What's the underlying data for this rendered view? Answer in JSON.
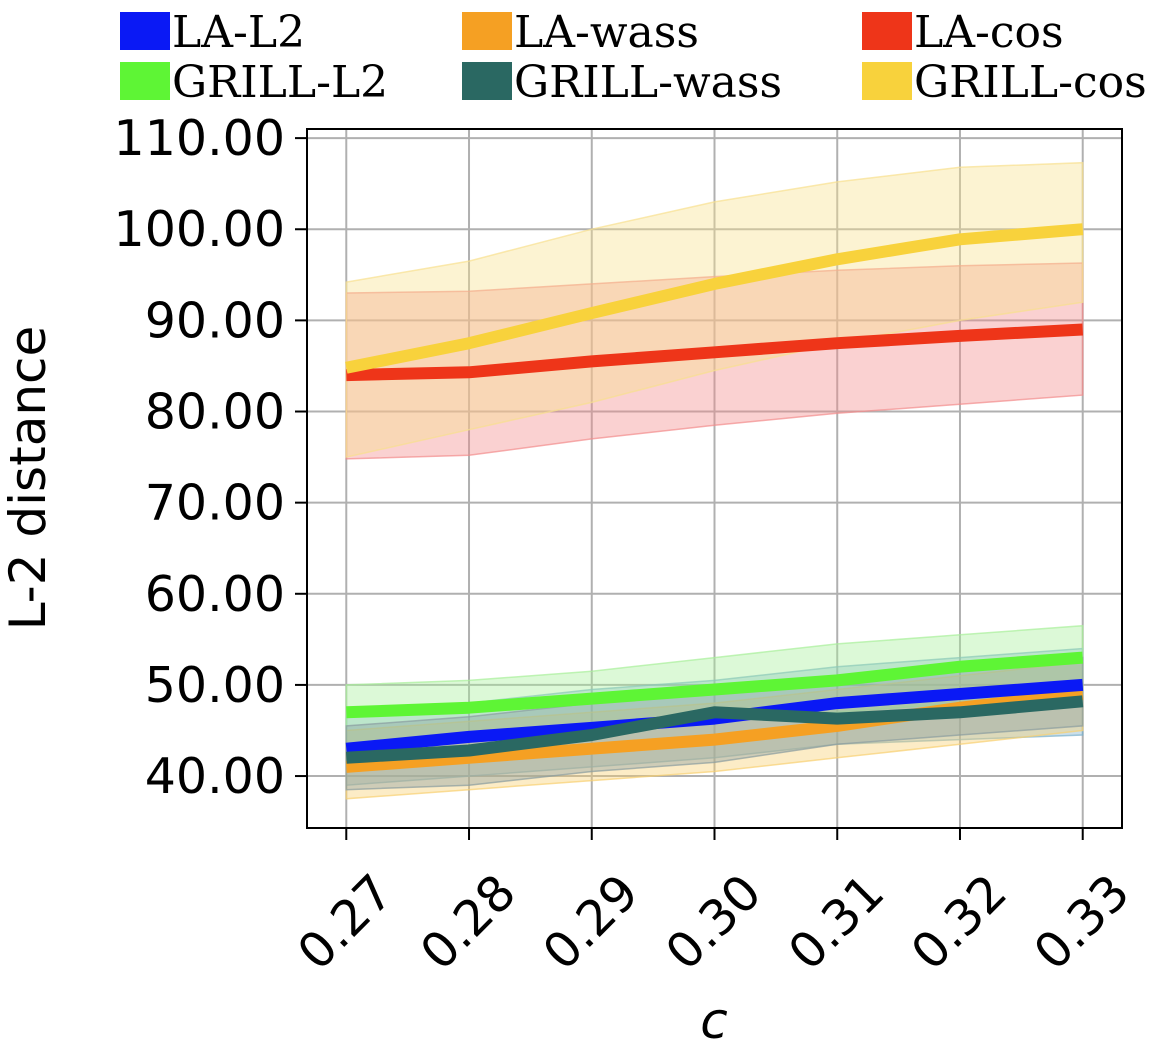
{
  "chart_data": {
    "type": "line",
    "xlabel": "c",
    "ylabel": "L-2 distance",
    "x": [
      0.27,
      0.28,
      0.29,
      0.3,
      0.31,
      0.32,
      0.33
    ],
    "x_tick_labels": [
      "0.27",
      "0.28",
      "0.29",
      "0.30",
      "0.31",
      "0.32",
      "0.33"
    ],
    "y_ticks": [
      40,
      50,
      60,
      70,
      80,
      90,
      100,
      110
    ],
    "y_tick_labels": [
      "40.00",
      "50.00",
      "60.00",
      "70.00",
      "80.00",
      "90.00",
      "100.00",
      "110.00"
    ],
    "xlim": [
      0.2668,
      0.3332
    ],
    "ylim": [
      34.3,
      111.0
    ],
    "grid": true,
    "legend_position": "top",
    "series": [
      {
        "name": "LA-L2",
        "color": "#0a19f5",
        "band_color": "#7ab0cc",
        "values": [
          43.0,
          44.3,
          45.3,
          46.3,
          48.0,
          49.0,
          50.0
        ],
        "lower": [
          39.0,
          40.0,
          41.0,
          42.0,
          43.5,
          44.0,
          44.5
        ],
        "upper": [
          46.5,
          48.0,
          49.5,
          50.5,
          52.0,
          53.0,
          54.0
        ]
      },
      {
        "name": "LA-wass",
        "color": "#f5a023",
        "band_color": "#f8d070",
        "values": [
          41.0,
          42.0,
          43.0,
          44.0,
          45.5,
          47.5,
          49.0
        ],
        "lower": [
          37.5,
          38.5,
          39.5,
          40.5,
          42.0,
          43.5,
          45.0
        ],
        "upper": [
          45.0,
          46.0,
          47.0,
          48.0,
          49.5,
          51.0,
          52.5
        ]
      },
      {
        "name": "LA-cos",
        "color": "#ee3519",
        "band_color": "#f28c8c",
        "values": [
          84.0,
          84.3,
          85.5,
          86.5,
          87.5,
          88.3,
          89.0
        ],
        "lower": [
          74.8,
          75.2,
          77.0,
          78.5,
          79.8,
          80.8,
          81.8
        ],
        "upper": [
          93.0,
          93.2,
          94.0,
          94.8,
          95.5,
          96.0,
          96.3
        ]
      },
      {
        "name": "GRILL-L2",
        "color": "#5ef535",
        "band_color": "#a8f09a",
        "values": [
          47.0,
          47.5,
          48.5,
          49.5,
          50.5,
          52.0,
          53.0
        ],
        "lower": [
          43.5,
          44.0,
          45.0,
          46.0,
          47.0,
          48.0,
          49.0
        ],
        "upper": [
          50.0,
          50.5,
          51.5,
          53.0,
          54.5,
          55.5,
          56.5
        ]
      },
      {
        "name": "GRILL-wass",
        "color": "#2a6862",
        "band_color": "#8a9da0",
        "values": [
          42.0,
          42.8,
          44.5,
          47.0,
          46.3,
          47.0,
          48.2
        ],
        "lower": [
          38.5,
          39.0,
          40.5,
          41.5,
          43.5,
          44.5,
          45.5
        ],
        "upper": [
          45.5,
          46.5,
          48.0,
          50.0,
          51.0,
          52.0,
          53.0
        ]
      },
      {
        "name": "GRILL-cos",
        "color": "#f8d23c",
        "band_color": "#f8e08e",
        "values": [
          84.8,
          87.5,
          90.8,
          94.0,
          96.7,
          98.9,
          100.0
        ],
        "lower": [
          75.0,
          78.0,
          81.0,
          84.5,
          87.5,
          90.0,
          92.0
        ],
        "upper": [
          94.2,
          96.5,
          100.0,
          103.0,
          105.2,
          106.8,
          107.3
        ]
      }
    ]
  }
}
